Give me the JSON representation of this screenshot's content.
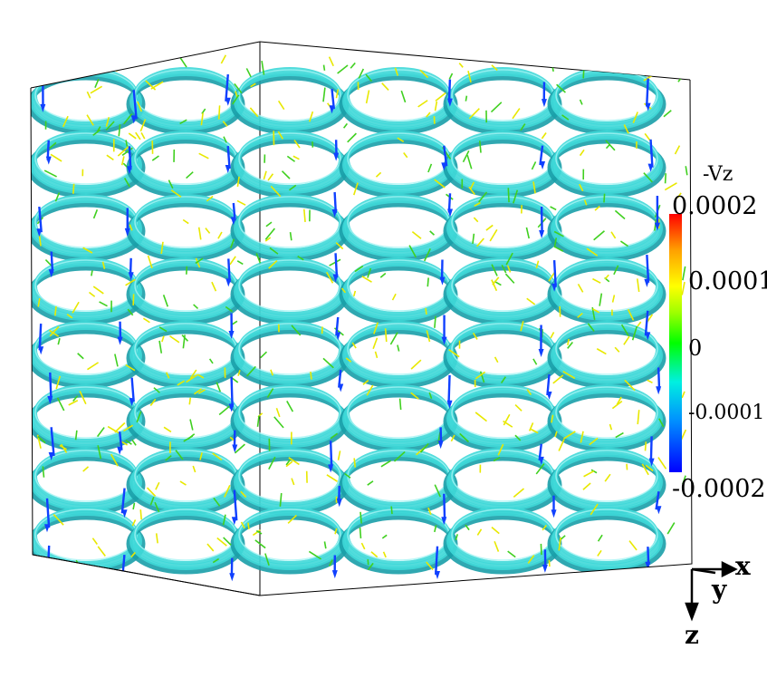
{
  "colorbar": {
    "title": "-Vz",
    "ticks": [
      "0.0002",
      "0.0001",
      "0",
      "-0.0001",
      "-0.0002"
    ],
    "min": -0.0002,
    "max": 0.0002,
    "colors": [
      "#0000ff",
      "#0080ff",
      "#00e0ff",
      "#00ff40",
      "#b0ff00",
      "#ffff00",
      "#ffa000",
      "#ff0000"
    ]
  },
  "axes": {
    "x_label": "x",
    "y_label": "y",
    "z_label": "z"
  },
  "colors": {
    "tube": "#3fd8d8",
    "tube_shadow": "#1a9ea8",
    "tube_highlight": "#a8f4f4",
    "arrow_blue": "#1040ff",
    "arrow_green": "#40d020",
    "arrow_yellow": "#e8e800",
    "box_edge": "#000000"
  }
}
